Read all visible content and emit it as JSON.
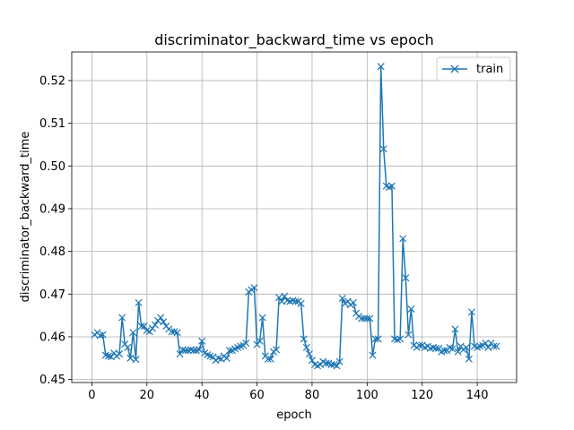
{
  "chart_data": {
    "type": "line",
    "title": "discriminator_backward_time vs epoch",
    "xlabel": "epoch",
    "ylabel": "discriminator_backward_time",
    "xlim": [
      -7.3,
      154.3
    ],
    "ylim": [
      0.4493,
      0.5267
    ],
    "xticks": [
      0,
      20,
      40,
      60,
      80,
      100,
      120,
      140
    ],
    "yticks": [
      0.45,
      0.46,
      0.47,
      0.48,
      0.49,
      0.5,
      0.51,
      0.52
    ],
    "ytick_labels": [
      "0.45",
      "0.46",
      "0.47",
      "0.48",
      "0.49",
      "0.50",
      "0.51",
      "0.52"
    ],
    "grid": true,
    "legend": "top-right",
    "color": "#1f77b4",
    "marker": "x",
    "series": [
      {
        "name": "train",
        "x": [
          1,
          2,
          3,
          4,
          5,
          6,
          7,
          8,
          9,
          10,
          11,
          12,
          13,
          14,
          15,
          16,
          17,
          18,
          19,
          20,
          21,
          22,
          23,
          24,
          25,
          26,
          27,
          28,
          29,
          30,
          31,
          32,
          33,
          34,
          35,
          36,
          37,
          38,
          39,
          40,
          41,
          42,
          43,
          44,
          45,
          46,
          47,
          48,
          49,
          50,
          51,
          52,
          53,
          54,
          55,
          56,
          57,
          58,
          59,
          60,
          61,
          62,
          63,
          64,
          65,
          66,
          67,
          68,
          69,
          70,
          71,
          72,
          73,
          74,
          75,
          76,
          77,
          78,
          79,
          80,
          81,
          82,
          83,
          84,
          85,
          86,
          87,
          88,
          89,
          90,
          91,
          92,
          93,
          94,
          95,
          96,
          97,
          98,
          99,
          100,
          101,
          102,
          103,
          104,
          105,
          106,
          107,
          108,
          109,
          110,
          111,
          112,
          113,
          114,
          115,
          116,
          117,
          118,
          119,
          120,
          121,
          122,
          123,
          124,
          125,
          126,
          127,
          128,
          129,
          130,
          131,
          132,
          133,
          134,
          135,
          136,
          137,
          138,
          139,
          140,
          141,
          142,
          143,
          144,
          145,
          146,
          147
        ],
        "values": [
          0.4605,
          0.461,
          0.4603,
          0.4605,
          0.4557,
          0.4555,
          0.4553,
          0.4562,
          0.4555,
          0.456,
          0.4645,
          0.4583,
          0.4575,
          0.455,
          0.461,
          0.4547,
          0.468,
          0.4625,
          0.4625,
          0.4615,
          0.4612,
          0.462,
          0.4628,
          0.4638,
          0.4645,
          0.4635,
          0.4625,
          0.4618,
          0.4612,
          0.4612,
          0.461,
          0.456,
          0.457,
          0.4568,
          0.4568,
          0.457,
          0.4568,
          0.4568,
          0.457,
          0.459,
          0.4562,
          0.4558,
          0.4555,
          0.4553,
          0.4545,
          0.455,
          0.4548,
          0.4555,
          0.455,
          0.4568,
          0.4568,
          0.4572,
          0.4575,
          0.4578,
          0.458,
          0.4585,
          0.4705,
          0.471,
          0.4715,
          0.4582,
          0.459,
          0.4645,
          0.4555,
          0.4548,
          0.4548,
          0.4565,
          0.457,
          0.4692,
          0.4683,
          0.4695,
          0.4685,
          0.4683,
          0.4685,
          0.4683,
          0.4683,
          0.4678,
          0.4595,
          0.4575,
          0.456,
          0.4545,
          0.4535,
          0.4532,
          0.4535,
          0.4542,
          0.4538,
          0.4538,
          0.4535,
          0.4535,
          0.4532,
          0.4542,
          0.469,
          0.4678,
          0.4683,
          0.4675,
          0.468,
          0.4655,
          0.4648,
          0.4643,
          0.4643,
          0.4643,
          0.4643,
          0.4557,
          0.4595,
          0.4595,
          0.5233,
          0.504,
          0.4953,
          0.495,
          0.4953,
          0.4595,
          0.4593,
          0.4595,
          0.483,
          0.4738,
          0.4605,
          0.4665,
          0.458,
          0.4575,
          0.458,
          0.458,
          0.4575,
          0.4578,
          0.4573,
          0.4575,
          0.4573,
          0.4573,
          0.4565,
          0.4568,
          0.4568,
          0.4575,
          0.4572,
          0.4618,
          0.4565,
          0.4578,
          0.457,
          0.4575,
          0.4548,
          0.4658,
          0.4578,
          0.4575,
          0.4578,
          0.458,
          0.4585,
          0.4575,
          0.4585,
          0.4578,
          0.4578
        ]
      }
    ]
  }
}
